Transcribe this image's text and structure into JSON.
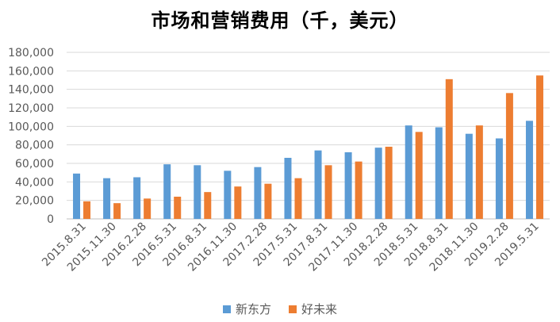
{
  "chart_data": {
    "type": "bar",
    "title": "市场和营销费用（千，美元）",
    "xlabel": "",
    "ylabel": "",
    "ylim": [
      0,
      180000
    ],
    "ytick_step": 20000,
    "ytick_labels": [
      "0",
      "20,000",
      "40,000",
      "60,000",
      "80,000",
      "100,000",
      "120,000",
      "140,000",
      "160,000",
      "180,000"
    ],
    "grid": true,
    "legend_position": "bottom",
    "categories": [
      "2015.8.31",
      "2015.11.30",
      "2016.2.28",
      "2016.5.31",
      "2016.8.31",
      "2016.11.30",
      "2017.2.28",
      "2017.5.31",
      "2017.8.31",
      "2017.11.30",
      "2018.2.28",
      "2018.5.31",
      "2018.8.31",
      "2018.11.30",
      "2019.2.28",
      "2019.5.31"
    ],
    "series": [
      {
        "name": "新东方",
        "color": "#5B9BD5",
        "values": [
          49000,
          44000,
          45000,
          59000,
          58000,
          52000,
          56000,
          66000,
          74000,
          72000,
          77000,
          101000,
          99000,
          92000,
          87000,
          106000
        ]
      },
      {
        "name": "好未来",
        "color": "#ED7D31",
        "values": [
          19000,
          17000,
          22000,
          24000,
          29000,
          35000,
          38000,
          44000,
          58000,
          62000,
          78000,
          94000,
          151000,
          101000,
          136000,
          155000
        ]
      }
    ]
  }
}
